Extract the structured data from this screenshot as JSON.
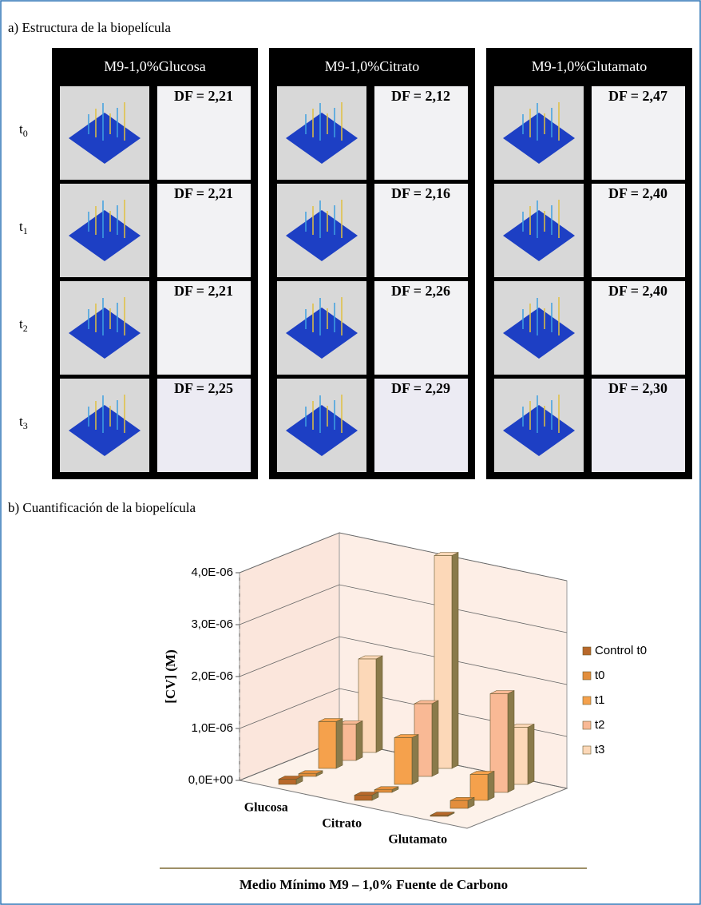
{
  "panel_a": {
    "title": "a) Estructura de la biopelícula",
    "columns": [
      "M9-1,0%Glucosa",
      "M9-1,0%Citrato",
      "M9-1,0%Glutamato"
    ],
    "rows": [
      {
        "t": "t",
        "sub": "0"
      },
      {
        "t": "t",
        "sub": "1"
      },
      {
        "t": "t",
        "sub": "2"
      },
      {
        "t": "t",
        "sub": "3"
      }
    ],
    "df": [
      [
        "DF = 2,21",
        "DF = 2,21",
        "DF = 2,21",
        "DF = 2,25"
      ],
      [
        "DF = 2,12",
        "DF = 2,16",
        "DF = 2,26",
        "DF = 2,29"
      ],
      [
        "DF = 2,47",
        "DF = 2,40",
        "DF = 2,40",
        "DF = 2,30"
      ]
    ]
  },
  "panel_b_title": "b) Cuantificación de la biopelícula",
  "chart_data": {
    "type": "bar3d",
    "ylabel": "[CV] (M)",
    "xlabel": "Medio Mínimo M9 – 1,0% Fuente de Carbono",
    "categories": [
      "Glucosa",
      "Citrato",
      "Glutamato"
    ],
    "series": [
      {
        "name": "Control t0",
        "color": "#b8682a",
        "values": [
          1e-07,
          1e-07,
          2e-08
        ]
      },
      {
        "name": "t0",
        "color": "#e38e3c",
        "values": [
          5e-08,
          5e-08,
          1.5e-07
        ]
      },
      {
        "name": "t1",
        "color": "#f5a14c",
        "values": [
          9e-07,
          9e-07,
          5e-07
        ]
      },
      {
        "name": "t2",
        "color": "#f9b995",
        "values": [
          7e-07,
          1.4e-06,
          1.9e-06
        ]
      },
      {
        "name": "t3",
        "color": "#fcd8b8",
        "values": [
          1.8e-06,
          4.1e-06,
          1.1e-06
        ]
      }
    ],
    "ylim": [
      0,
      4e-06
    ],
    "yticks": [
      {
        "value": 0,
        "label": "0,0E+00"
      },
      {
        "value": 1e-06,
        "label": "1,0E-06"
      },
      {
        "value": 2e-06,
        "label": "2,0E-06"
      },
      {
        "value": 3e-06,
        "label": "3,0E-06"
      },
      {
        "value": 4e-06,
        "label": "4,0E-06"
      }
    ],
    "grid": true
  }
}
